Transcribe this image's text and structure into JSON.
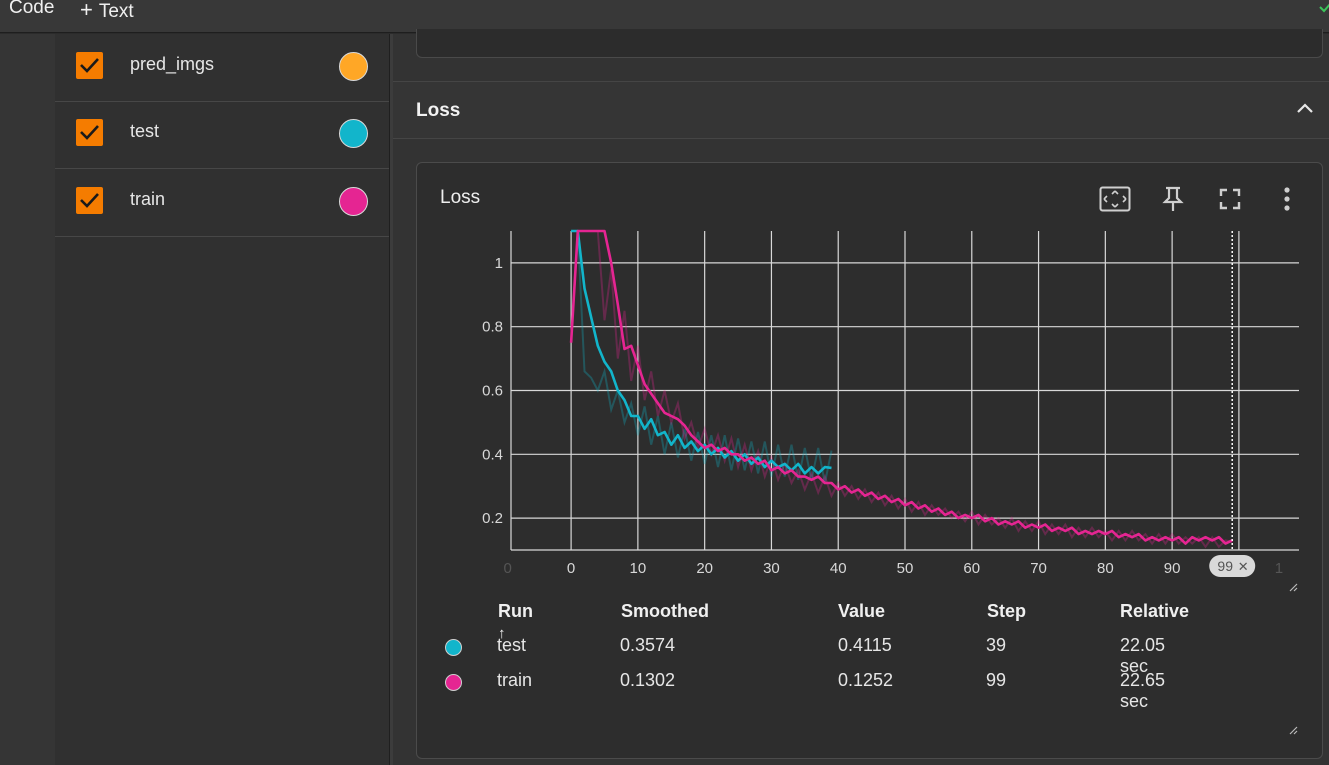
{
  "toolbar": {
    "code_label": "Code",
    "text_label": "Text",
    "plus_icon": "+"
  },
  "runs": [
    {
      "name": "pred_imgs",
      "checked": true,
      "color": "#ffa726"
    },
    {
      "name": "test",
      "checked": true,
      "color": "#12b5cb"
    },
    {
      "name": "train",
      "checked": true,
      "color": "#e52592"
    }
  ],
  "group": {
    "title": "Loss"
  },
  "card": {
    "title": "Loss"
  },
  "chart_data": {
    "type": "line",
    "title": "",
    "xlabel": "",
    "ylabel": "",
    "xlim": [
      -9,
      109
    ],
    "ylim": [
      0.1,
      1.1
    ],
    "x_ticks": [
      "0",
      "0",
      "10",
      "20",
      "30",
      "40",
      "50",
      "60",
      "70",
      "80",
      "90",
      "1"
    ],
    "y_ticks": [
      "0.2",
      "0.4",
      "0.6",
      "0.8",
      "1"
    ],
    "grid": true,
    "step_marker": {
      "label": "99",
      "x": 99
    },
    "series": [
      {
        "name": "test",
        "color": "#12b5cb",
        "x": [
          0,
          1,
          2,
          3,
          4,
          5,
          6,
          7,
          8,
          9,
          10,
          11,
          12,
          13,
          14,
          15,
          16,
          17,
          18,
          19,
          20,
          21,
          22,
          23,
          24,
          25,
          26,
          27,
          28,
          29,
          30,
          31,
          32,
          33,
          34,
          35,
          36,
          37,
          38,
          39
        ],
        "smoothed": [
          1.1,
          1.1,
          0.92,
          0.83,
          0.74,
          0.69,
          0.66,
          0.6,
          0.57,
          0.52,
          0.52,
          0.48,
          0.51,
          0.46,
          0.47,
          0.43,
          0.46,
          0.42,
          0.44,
          0.41,
          0.43,
          0.4,
          0.42,
          0.39,
          0.41,
          0.38,
          0.4,
          0.37,
          0.39,
          0.36,
          0.38,
          0.36,
          0.37,
          0.35,
          0.37,
          0.34,
          0.36,
          0.34,
          0.36,
          0.3574
        ],
        "raw": [
          1.1,
          1.1,
          0.66,
          0.64,
          0.6,
          0.66,
          0.54,
          0.6,
          0.5,
          0.56,
          0.46,
          0.55,
          0.43,
          0.52,
          0.4,
          0.5,
          0.39,
          0.48,
          0.38,
          0.47,
          0.37,
          0.46,
          0.36,
          0.46,
          0.35,
          0.45,
          0.35,
          0.44,
          0.34,
          0.44,
          0.33,
          0.43,
          0.33,
          0.43,
          0.32,
          0.42,
          0.32,
          0.42,
          0.31,
          0.4115
        ]
      },
      {
        "name": "train",
        "color": "#e52592",
        "x": [
          0,
          1,
          2,
          3,
          4,
          5,
          6,
          7,
          8,
          9,
          10,
          11,
          12,
          13,
          14,
          15,
          16,
          17,
          18,
          19,
          20,
          21,
          22,
          23,
          24,
          25,
          26,
          27,
          28,
          29,
          30,
          31,
          32,
          33,
          34,
          35,
          36,
          37,
          38,
          39,
          40,
          41,
          42,
          43,
          44,
          45,
          46,
          47,
          48,
          49,
          50,
          51,
          52,
          53,
          54,
          55,
          56,
          57,
          58,
          59,
          60,
          61,
          62,
          63,
          64,
          65,
          66,
          67,
          68,
          69,
          70,
          71,
          72,
          73,
          74,
          75,
          76,
          77,
          78,
          79,
          80,
          81,
          82,
          83,
          84,
          85,
          86,
          87,
          88,
          89,
          90,
          91,
          92,
          93,
          94,
          95,
          96,
          97,
          98,
          99
        ],
        "smoothed": [
          0.75,
          1.1,
          1.1,
          1.1,
          1.1,
          1.1,
          1.0,
          0.87,
          0.73,
          0.74,
          0.68,
          0.62,
          0.59,
          0.56,
          0.53,
          0.52,
          0.51,
          0.49,
          0.46,
          0.44,
          0.42,
          0.43,
          0.41,
          0.42,
          0.4,
          0.4,
          0.38,
          0.39,
          0.37,
          0.38,
          0.35,
          0.36,
          0.34,
          0.35,
          0.33,
          0.33,
          0.32,
          0.33,
          0.31,
          0.31,
          0.29,
          0.3,
          0.28,
          0.29,
          0.27,
          0.28,
          0.26,
          0.27,
          0.25,
          0.26,
          0.24,
          0.25,
          0.23,
          0.24,
          0.22,
          0.23,
          0.21,
          0.22,
          0.2,
          0.21,
          0.2,
          0.21,
          0.19,
          0.2,
          0.18,
          0.19,
          0.18,
          0.19,
          0.17,
          0.18,
          0.17,
          0.18,
          0.16,
          0.17,
          0.16,
          0.17,
          0.15,
          0.16,
          0.15,
          0.16,
          0.15,
          0.16,
          0.14,
          0.15,
          0.14,
          0.15,
          0.13,
          0.14,
          0.13,
          0.14,
          0.13,
          0.14,
          0.12,
          0.14,
          0.13,
          0.14,
          0.13,
          0.14,
          0.12,
          0.1302
        ],
        "raw": [
          0.75,
          1.1,
          1.1,
          1.1,
          1.1,
          0.82,
          0.98,
          0.7,
          0.85,
          0.63,
          0.74,
          0.57,
          0.66,
          0.52,
          0.6,
          0.5,
          0.56,
          0.45,
          0.5,
          0.42,
          0.48,
          0.4,
          0.46,
          0.38,
          0.45,
          0.36,
          0.43,
          0.35,
          0.41,
          0.33,
          0.39,
          0.32,
          0.37,
          0.31,
          0.35,
          0.29,
          0.34,
          0.28,
          0.33,
          0.27,
          0.31,
          0.27,
          0.3,
          0.26,
          0.29,
          0.25,
          0.28,
          0.24,
          0.27,
          0.23,
          0.26,
          0.22,
          0.25,
          0.21,
          0.24,
          0.21,
          0.23,
          0.2,
          0.22,
          0.19,
          0.22,
          0.18,
          0.21,
          0.18,
          0.2,
          0.17,
          0.2,
          0.16,
          0.19,
          0.16,
          0.19,
          0.15,
          0.18,
          0.15,
          0.18,
          0.14,
          0.17,
          0.14,
          0.17,
          0.14,
          0.16,
          0.13,
          0.16,
          0.13,
          0.16,
          0.13,
          0.15,
          0.12,
          0.15,
          0.12,
          0.15,
          0.12,
          0.14,
          0.12,
          0.14,
          0.11,
          0.14,
          0.11,
          0.13,
          0.1252
        ]
      }
    ]
  },
  "legend": {
    "headers": {
      "run": "Run",
      "sort_icon": "↑",
      "smoothed": "Smoothed",
      "value": "Value",
      "step": "Step",
      "relative": "Relative"
    },
    "rows": [
      {
        "run": "test",
        "color": "#12b5cb",
        "smoothed": "0.3574",
        "value": "0.4115",
        "step": "39",
        "relative": "22.05 sec"
      },
      {
        "run": "train",
        "color": "#e52592",
        "smoothed": "0.1302",
        "value": "0.1252",
        "step": "99",
        "relative": "22.65 sec"
      }
    ]
  },
  "icons": {
    "fit_domain": "fit-domain-icon",
    "pin": "pin-icon",
    "fullscreen": "fullscreen-icon",
    "more": "more-vert-icon",
    "collapse": "chevron-up-icon",
    "checkbox": "checkbox-checked-icon"
  },
  "colors": {
    "accent": "#f57c00",
    "background": "#2b2b2b",
    "card": "#2d2d2d"
  }
}
